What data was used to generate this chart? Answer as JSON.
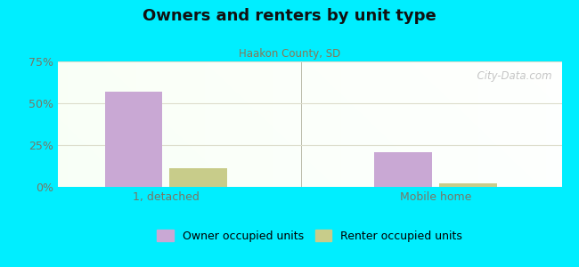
{
  "title": "Owners and renters by unit type",
  "subtitle": "Haakon County, SD",
  "categories": [
    "1, detached",
    "Mobile home"
  ],
  "owner_values": [
    57.0,
    21.0
  ],
  "renter_values": [
    11.0,
    2.0
  ],
  "owner_color": "#c9a8d4",
  "renter_color": "#c8cc8a",
  "ylim": [
    0,
    75
  ],
  "yticks": [
    0,
    25,
    50,
    75
  ],
  "yticklabels": [
    "0%",
    "25%",
    "50%",
    "75%"
  ],
  "bar_width": 0.32,
  "background_outer": "#00eeff",
  "watermark": "  City-Data.com",
  "legend_owner": "Owner occupied units",
  "legend_renter": "Renter occupied units",
  "title_color": "#111111",
  "subtitle_color": "#887755",
  "tick_color": "#777766",
  "grid_color": "#ddddcc"
}
